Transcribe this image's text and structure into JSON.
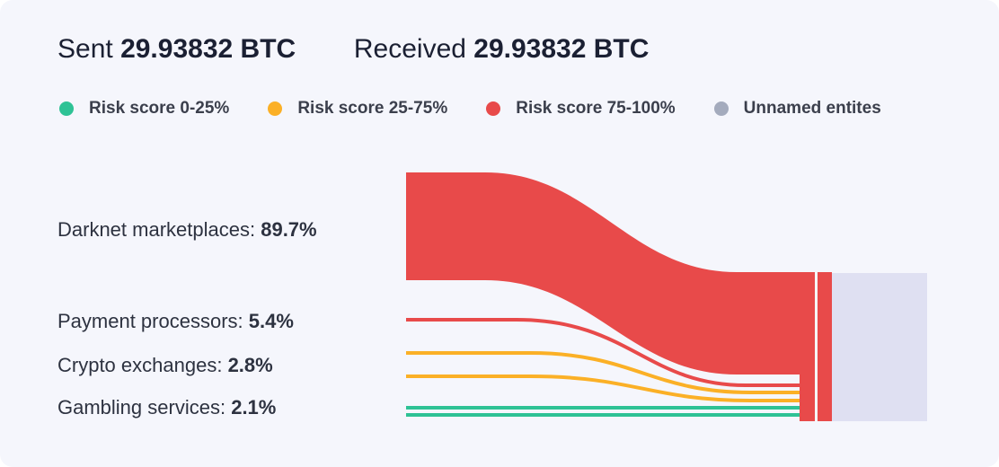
{
  "header": {
    "sent_label": "Sent",
    "sent_value": "29.93832 BTC",
    "received_label": "Received",
    "received_value": "29.93832 BTC"
  },
  "legend": [
    {
      "label": "Risk score 0-25%",
      "color": "#2ec295"
    },
    {
      "label": "Risk score 25-75%",
      "color": "#fbb026"
    },
    {
      "label": "Risk score 75-100%",
      "color": "#e84a4a"
    },
    {
      "label": "Unnamed entites",
      "color": "#a4abbd"
    }
  ],
  "chart_data": {
    "type": "sankey",
    "categories": [
      {
        "label": "Darknet marketplaces:",
        "value_text": "89.7%",
        "value": 89.7,
        "risk": "75-100%",
        "color": "#e84a4a"
      },
      {
        "label": "Payment processors:",
        "value_text": "5.4%",
        "value": 5.4,
        "risk": "75-100%",
        "color": "#e84a4a"
      },
      {
        "label": "Crypto exchanges:",
        "value_text": "2.8%",
        "value": 2.8,
        "risk": "25-75%",
        "color": "#fbb026"
      },
      {
        "label": "Gambling services:",
        "value_text": "2.1%",
        "value": 2.1,
        "risk": "0-25%",
        "color": "#2ec295"
      }
    ],
    "target_color": "#e84a4a",
    "unnamed_color": "#dfe0f2"
  }
}
